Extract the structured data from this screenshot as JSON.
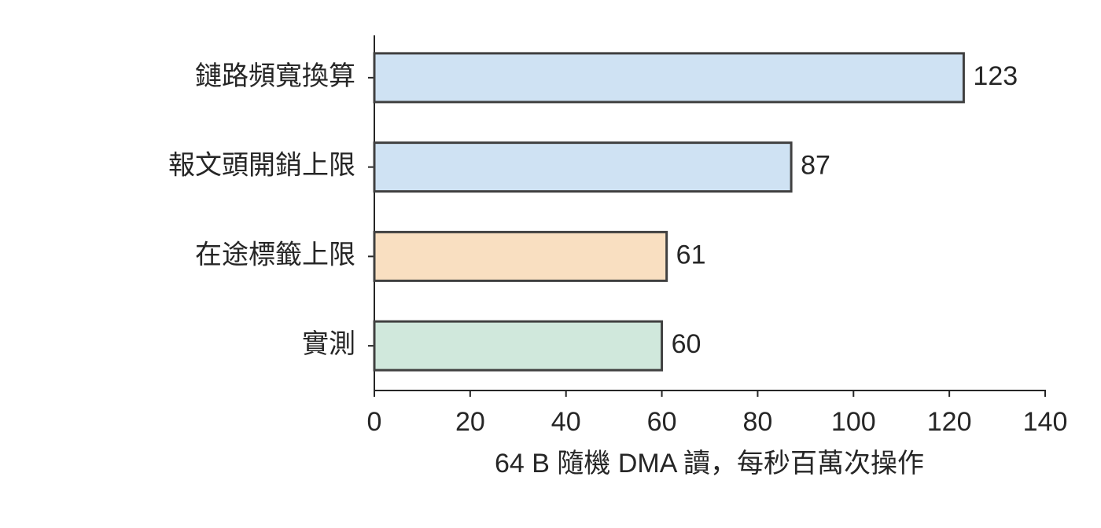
{
  "chart_data": {
    "type": "barh",
    "categories": [
      "鏈路頻寬換算",
      "報文頭開銷上限",
      "在途標籤上限",
      "實測"
    ],
    "values": [
      123,
      87,
      61,
      60
    ],
    "colors": [
      "#cfe2f3",
      "#cfe2f3",
      "#f9dfc1",
      "#d0e8dc"
    ],
    "xlabel": "64 B 隨機 DMA 讀，每秒百萬次操作",
    "xlim": [
      0,
      140
    ],
    "xticks": [
      0,
      20,
      40,
      60,
      80,
      100,
      120,
      140
    ]
  }
}
